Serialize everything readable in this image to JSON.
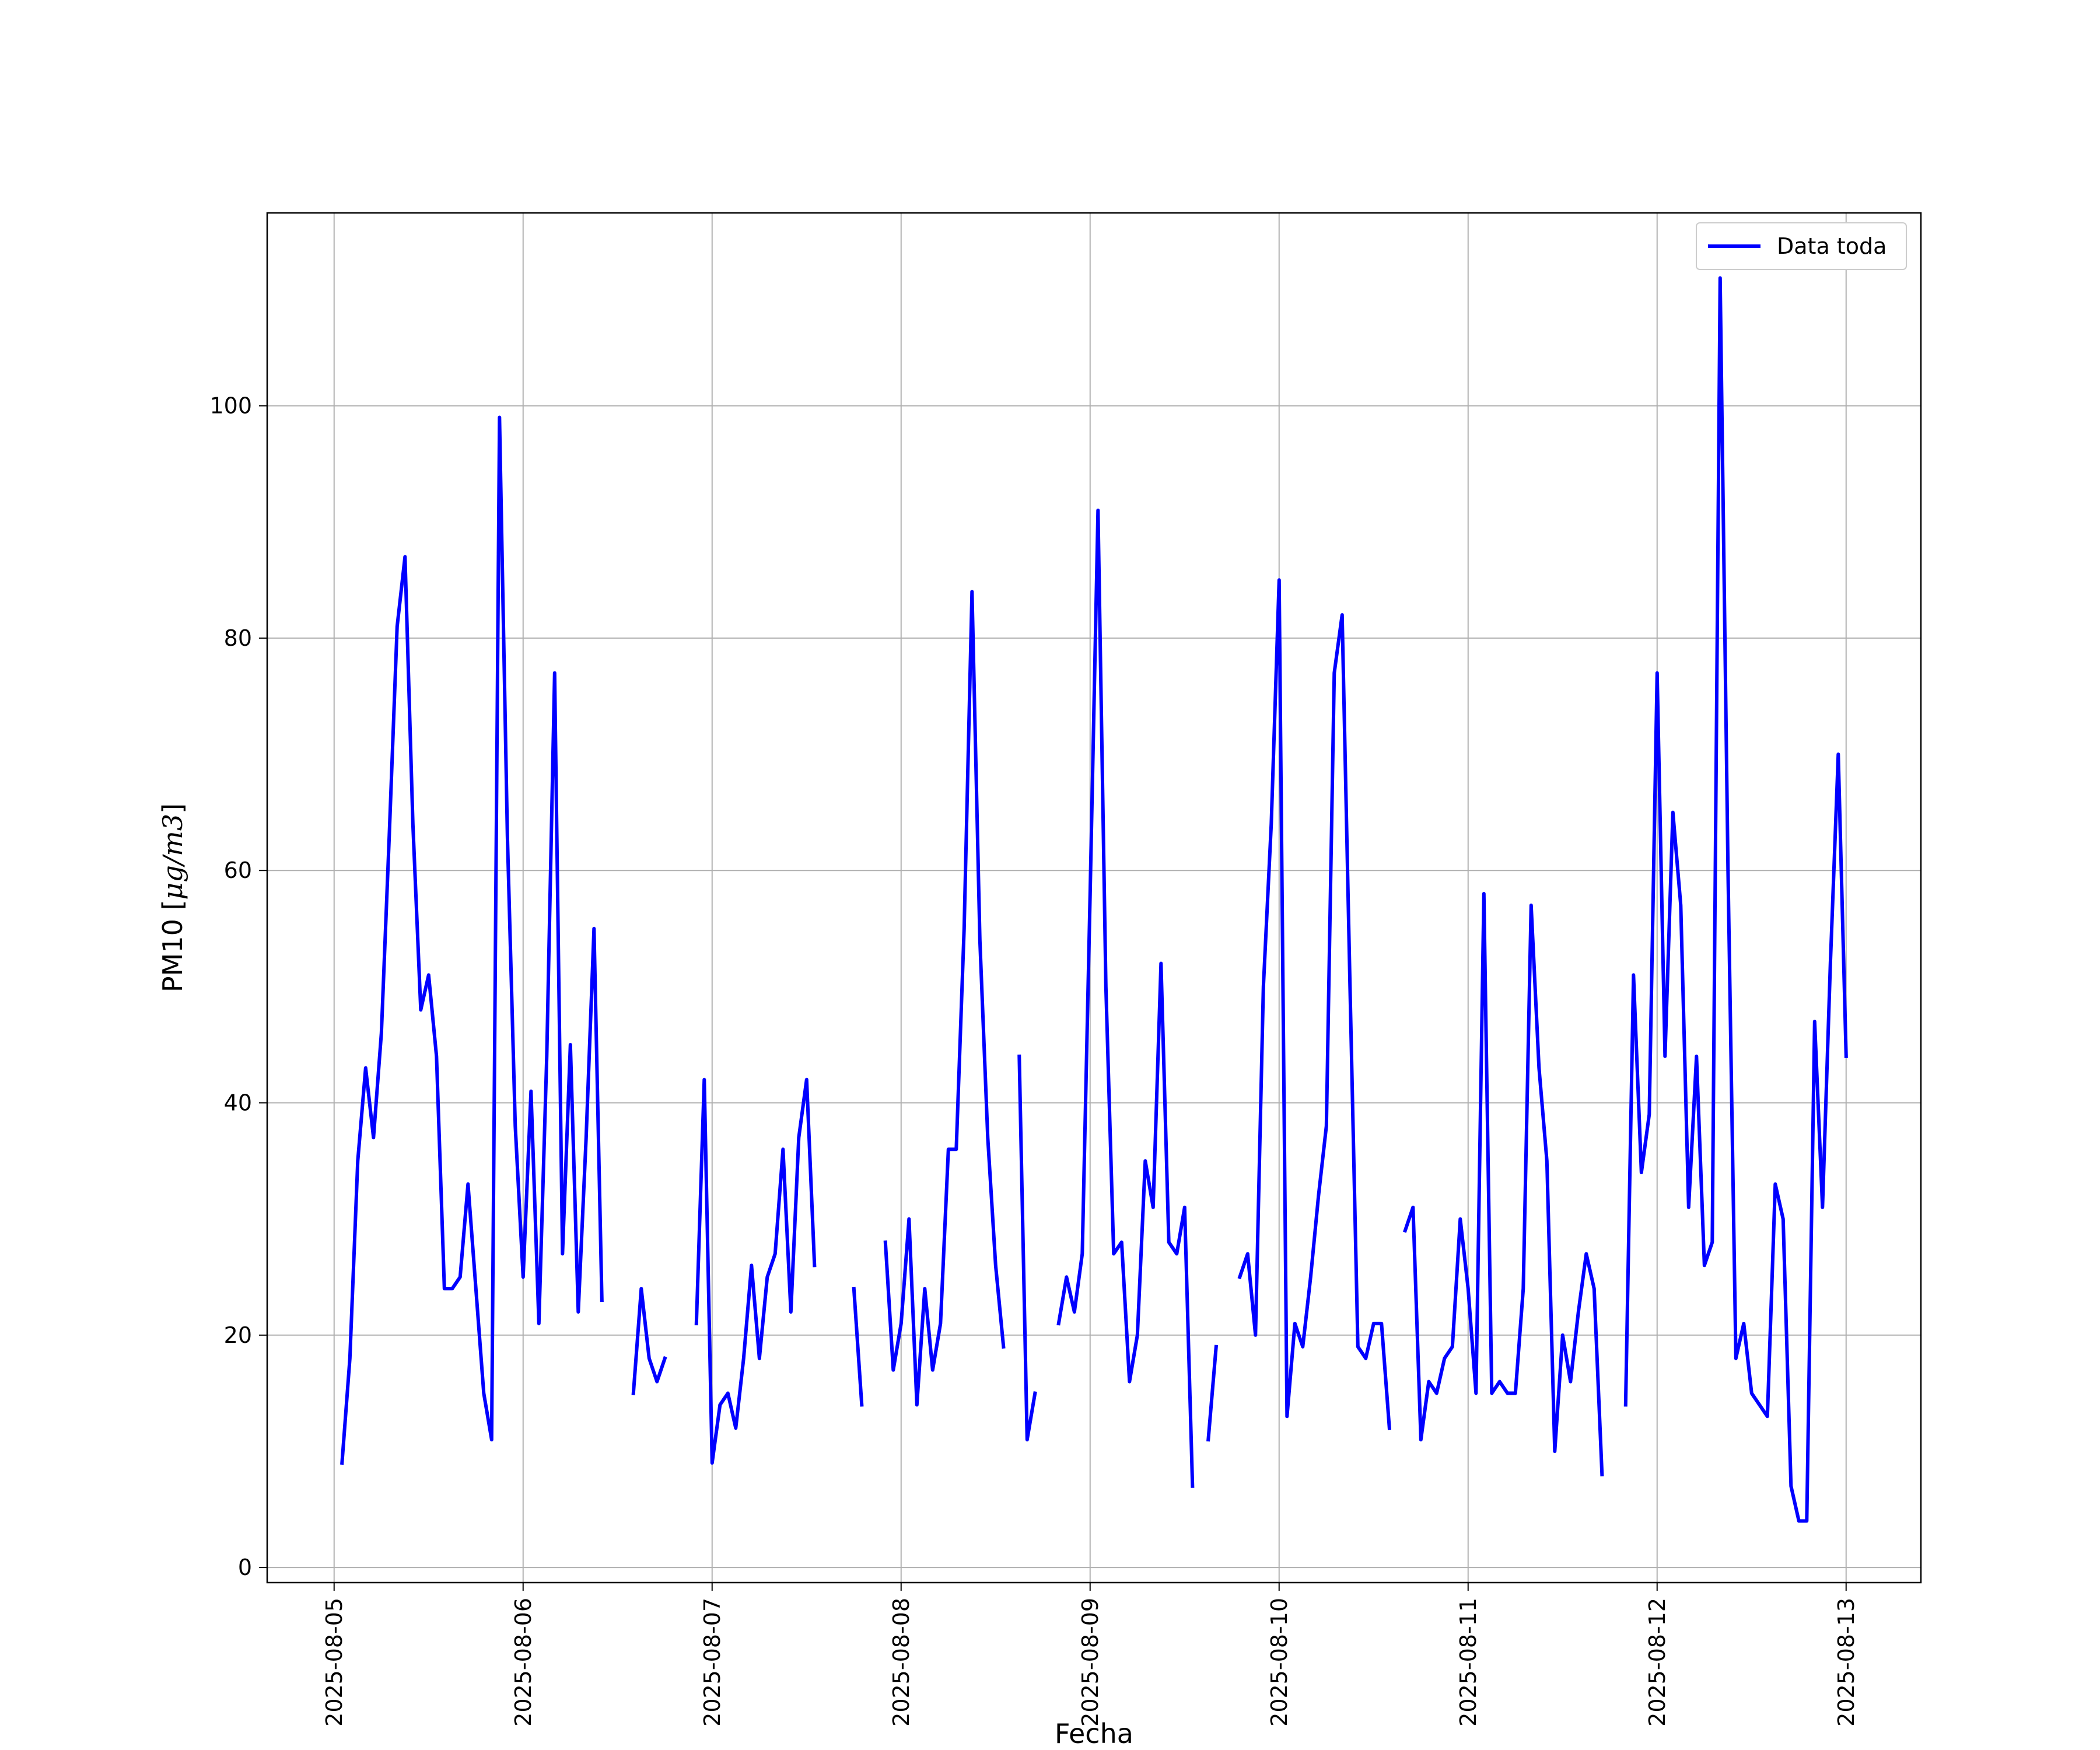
{
  "chart_data": {
    "type": "line",
    "title": "",
    "xlabel": "Fecha",
    "ylabel_text": "PM10 [",
    "ylabel_math": "μg/m3",
    "ylabel_close": "]",
    "x_tick_labels": [
      "2025-08-05",
      "2025-08-06",
      "2025-08-07",
      "2025-08-08",
      "2025-08-09",
      "2025-08-10",
      "2025-08-11",
      "2025-08-12",
      "2025-08-13"
    ],
    "y_ticks": [
      0,
      20,
      40,
      60,
      80,
      100
    ],
    "ylim": [
      -1.3,
      116.6
    ],
    "xlim": [
      "2025-08-04 15:30",
      "2025-08-13 09:30"
    ],
    "grid": true,
    "legend_position": "upper-right",
    "series": [
      {
        "name": "Data toda",
        "color": "#0000ff",
        "points": [
          [
            "2025-08-05 01:00",
            9
          ],
          [
            "2025-08-05 02:00",
            18
          ],
          [
            "2025-08-05 03:00",
            35
          ],
          [
            "2025-08-05 04:00",
            43
          ],
          [
            "2025-08-05 05:00",
            37
          ],
          [
            "2025-08-05 06:00",
            46
          ],
          [
            "2025-08-05 07:00",
            63
          ],
          [
            "2025-08-05 08:00",
            81
          ],
          [
            "2025-08-05 09:00",
            87
          ],
          [
            "2025-08-05 10:00",
            64
          ],
          [
            "2025-08-05 11:00",
            48
          ],
          [
            "2025-08-05 12:00",
            51
          ],
          [
            "2025-08-05 13:00",
            44
          ],
          [
            "2025-08-05 14:00",
            24
          ],
          [
            "2025-08-05 15:00",
            24
          ],
          [
            "2025-08-05 16:00",
            25
          ],
          [
            "2025-08-05 17:00",
            33
          ],
          [
            "2025-08-05 18:00",
            24
          ],
          [
            "2025-08-05 19:00",
            15
          ],
          [
            "2025-08-05 20:00",
            11
          ],
          [
            "2025-08-05 21:00",
            99
          ],
          [
            "2025-08-05 22:00",
            63
          ],
          [
            "2025-08-05 23:00",
            38
          ],
          [
            "2025-08-06 00:00",
            25
          ],
          [
            "2025-08-06 01:00",
            41
          ],
          [
            "2025-08-06 02:00",
            21
          ],
          [
            "2025-08-06 03:00",
            44
          ],
          [
            "2025-08-06 04:00",
            77
          ],
          [
            "2025-08-06 05:00",
            27
          ],
          [
            "2025-08-06 06:00",
            45
          ],
          [
            "2025-08-06 07:00",
            22
          ],
          [
            "2025-08-06 08:00",
            37
          ],
          [
            "2025-08-06 09:00",
            55
          ],
          [
            "2025-08-06 10:00",
            23
          ],
          null,
          [
            "2025-08-06 14:00",
            15
          ],
          [
            "2025-08-06 15:00",
            24
          ],
          [
            "2025-08-06 16:00",
            18
          ],
          [
            "2025-08-06 17:00",
            16
          ],
          [
            "2025-08-06 18:00",
            18
          ],
          null,
          [
            "2025-08-06 22:00",
            21
          ],
          [
            "2025-08-06 23:00",
            42
          ],
          [
            "2025-08-07 00:00",
            9
          ],
          [
            "2025-08-07 01:00",
            14
          ],
          [
            "2025-08-07 02:00",
            15
          ],
          [
            "2025-08-07 03:00",
            12
          ],
          [
            "2025-08-07 04:00",
            18
          ],
          [
            "2025-08-07 05:00",
            26
          ],
          [
            "2025-08-07 06:00",
            18
          ],
          [
            "2025-08-07 07:00",
            25
          ],
          [
            "2025-08-07 08:00",
            27
          ],
          [
            "2025-08-07 09:00",
            36
          ],
          [
            "2025-08-07 10:00",
            22
          ],
          [
            "2025-08-07 11:00",
            37
          ],
          [
            "2025-08-07 12:00",
            42
          ],
          [
            "2025-08-07 13:00",
            26
          ],
          null,
          [
            "2025-08-07 18:00",
            24
          ],
          [
            "2025-08-07 19:00",
            14
          ],
          null,
          [
            "2025-08-07 22:00",
            28
          ],
          [
            "2025-08-07 23:00",
            17
          ],
          [
            "2025-08-08 00:00",
            21
          ],
          [
            "2025-08-08 01:00",
            30
          ],
          [
            "2025-08-08 02:00",
            14
          ],
          [
            "2025-08-08 03:00",
            24
          ],
          [
            "2025-08-08 04:00",
            17
          ],
          [
            "2025-08-08 05:00",
            21
          ],
          [
            "2025-08-08 06:00",
            36
          ],
          [
            "2025-08-08 07:00",
            36
          ],
          [
            "2025-08-08 08:00",
            55
          ],
          [
            "2025-08-08 09:00",
            84
          ],
          [
            "2025-08-08 10:00",
            54
          ],
          [
            "2025-08-08 11:00",
            37
          ],
          [
            "2025-08-08 12:00",
            26
          ],
          [
            "2025-08-08 13:00",
            19
          ],
          null,
          [
            "2025-08-08 15:00",
            44
          ],
          [
            "2025-08-08 16:00",
            11
          ],
          [
            "2025-08-08 17:00",
            15
          ],
          null,
          [
            "2025-08-08 20:00",
            21
          ],
          [
            "2025-08-08 21:00",
            25
          ],
          [
            "2025-08-08 22:00",
            22
          ],
          [
            "2025-08-08 23:00",
            27
          ],
          [
            "2025-08-09 00:00",
            58
          ],
          [
            "2025-08-09 01:00",
            91
          ],
          [
            "2025-08-09 02:00",
            50
          ],
          [
            "2025-08-09 03:00",
            27
          ],
          [
            "2025-08-09 04:00",
            28
          ],
          [
            "2025-08-09 05:00",
            16
          ],
          [
            "2025-08-09 06:00",
            20
          ],
          [
            "2025-08-09 07:00",
            35
          ],
          [
            "2025-08-09 08:00",
            31
          ],
          [
            "2025-08-09 09:00",
            52
          ],
          [
            "2025-08-09 10:00",
            28
          ],
          [
            "2025-08-09 11:00",
            27
          ],
          [
            "2025-08-09 12:00",
            31
          ],
          [
            "2025-08-09 13:00",
            7
          ],
          null,
          [
            "2025-08-09 15:00",
            11
          ],
          [
            "2025-08-09 16:00",
            19
          ],
          null,
          [
            "2025-08-09 19:00",
            25
          ],
          [
            "2025-08-09 20:00",
            27
          ],
          [
            "2025-08-09 21:00",
            20
          ],
          [
            "2025-08-09 22:00",
            50
          ],
          [
            "2025-08-09 23:00",
            64
          ],
          [
            "2025-08-10 00:00",
            85
          ],
          [
            "2025-08-10 01:00",
            13
          ],
          [
            "2025-08-10 02:00",
            21
          ],
          [
            "2025-08-10 03:00",
            19
          ],
          [
            "2025-08-10 04:00",
            25
          ],
          [
            "2025-08-10 05:00",
            32
          ],
          [
            "2025-08-10 06:00",
            38
          ],
          [
            "2025-08-10 07:00",
            77
          ],
          [
            "2025-08-10 08:00",
            82
          ],
          [
            "2025-08-10 09:00",
            50
          ],
          [
            "2025-08-10 10:00",
            19
          ],
          [
            "2025-08-10 11:00",
            18
          ],
          [
            "2025-08-10 12:00",
            21
          ],
          [
            "2025-08-10 13:00",
            21
          ],
          [
            "2025-08-10 14:00",
            12
          ],
          null,
          [
            "2025-08-10 16:00",
            29
          ],
          [
            "2025-08-10 17:00",
            31
          ],
          [
            "2025-08-10 18:00",
            11
          ],
          [
            "2025-08-10 19:00",
            16
          ],
          [
            "2025-08-10 20:00",
            15
          ],
          [
            "2025-08-10 21:00",
            18
          ],
          [
            "2025-08-10 22:00",
            19
          ],
          [
            "2025-08-10 23:00",
            30
          ],
          [
            "2025-08-11 00:00",
            24
          ],
          [
            "2025-08-11 01:00",
            15
          ],
          [
            "2025-08-11 02:00",
            58
          ],
          [
            "2025-08-11 03:00",
            15
          ],
          [
            "2025-08-11 04:00",
            16
          ],
          [
            "2025-08-11 05:00",
            15
          ],
          [
            "2025-08-11 06:00",
            15
          ],
          [
            "2025-08-11 07:00",
            24
          ],
          [
            "2025-08-11 08:00",
            57
          ],
          [
            "2025-08-11 09:00",
            43
          ],
          [
            "2025-08-11 10:00",
            35
          ],
          [
            "2025-08-11 11:00",
            10
          ],
          [
            "2025-08-11 12:00",
            20
          ],
          [
            "2025-08-11 13:00",
            16
          ],
          [
            "2025-08-11 14:00",
            22
          ],
          [
            "2025-08-11 15:00",
            27
          ],
          [
            "2025-08-11 16:00",
            24
          ],
          [
            "2025-08-11 17:00",
            8
          ],
          null,
          [
            "2025-08-11 20:00",
            14
          ],
          [
            "2025-08-11 21:00",
            51
          ],
          [
            "2025-08-11 22:00",
            34
          ],
          [
            "2025-08-11 23:00",
            39
          ],
          [
            "2025-08-12 00:00",
            77
          ],
          [
            "2025-08-12 01:00",
            44
          ],
          [
            "2025-08-12 02:00",
            65
          ],
          [
            "2025-08-12 03:00",
            57
          ],
          [
            "2025-08-12 04:00",
            31
          ],
          [
            "2025-08-12 05:00",
            44
          ],
          [
            "2025-08-12 06:00",
            26
          ],
          [
            "2025-08-12 07:00",
            28
          ],
          [
            "2025-08-12 08:00",
            111
          ],
          [
            "2025-08-12 09:00",
            60
          ],
          [
            "2025-08-12 10:00",
            18
          ],
          [
            "2025-08-12 11:00",
            21
          ],
          [
            "2025-08-12 12:00",
            15
          ],
          [
            "2025-08-12 13:00",
            14
          ],
          [
            "2025-08-12 14:00",
            13
          ],
          [
            "2025-08-12 15:00",
            33
          ],
          [
            "2025-08-12 16:00",
            30
          ],
          [
            "2025-08-12 17:00",
            7
          ],
          [
            "2025-08-12 18:00",
            4
          ],
          [
            "2025-08-12 19:00",
            4
          ],
          [
            "2025-08-12 20:00",
            47
          ],
          [
            "2025-08-12 21:00",
            31
          ],
          [
            "2025-08-12 22:00",
            52
          ],
          [
            "2025-08-12 23:00",
            70
          ],
          [
            "2025-08-13 00:00",
            44
          ]
        ]
      }
    ]
  }
}
